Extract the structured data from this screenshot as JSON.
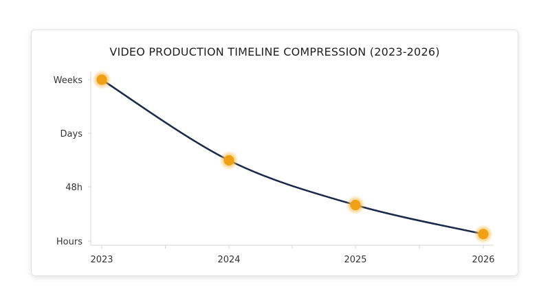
{
  "chart_data": {
    "type": "line",
    "title": "VIDEO PRODUCTION TIMELINE COMPRESSION (2023-2026)",
    "xlabel": "",
    "ylabel": "",
    "categories": [
      "2023",
      "2024",
      "2025",
      "2026"
    ],
    "y_categories": [
      "Hours",
      "48h",
      "Days",
      "Weeks"
    ],
    "series": [
      {
        "values": [
          3.0,
          1.5,
          0.67,
          0.13
        ]
      }
    ],
    "ylim": [
      0,
      3
    ],
    "grid": false,
    "legend": "none",
    "colors": {
      "line": "#1b2a4a",
      "marker": "#f0a012",
      "marker_glow": "#f7c15a",
      "axis": "#d6d6d6",
      "text": "#333333"
    }
  }
}
